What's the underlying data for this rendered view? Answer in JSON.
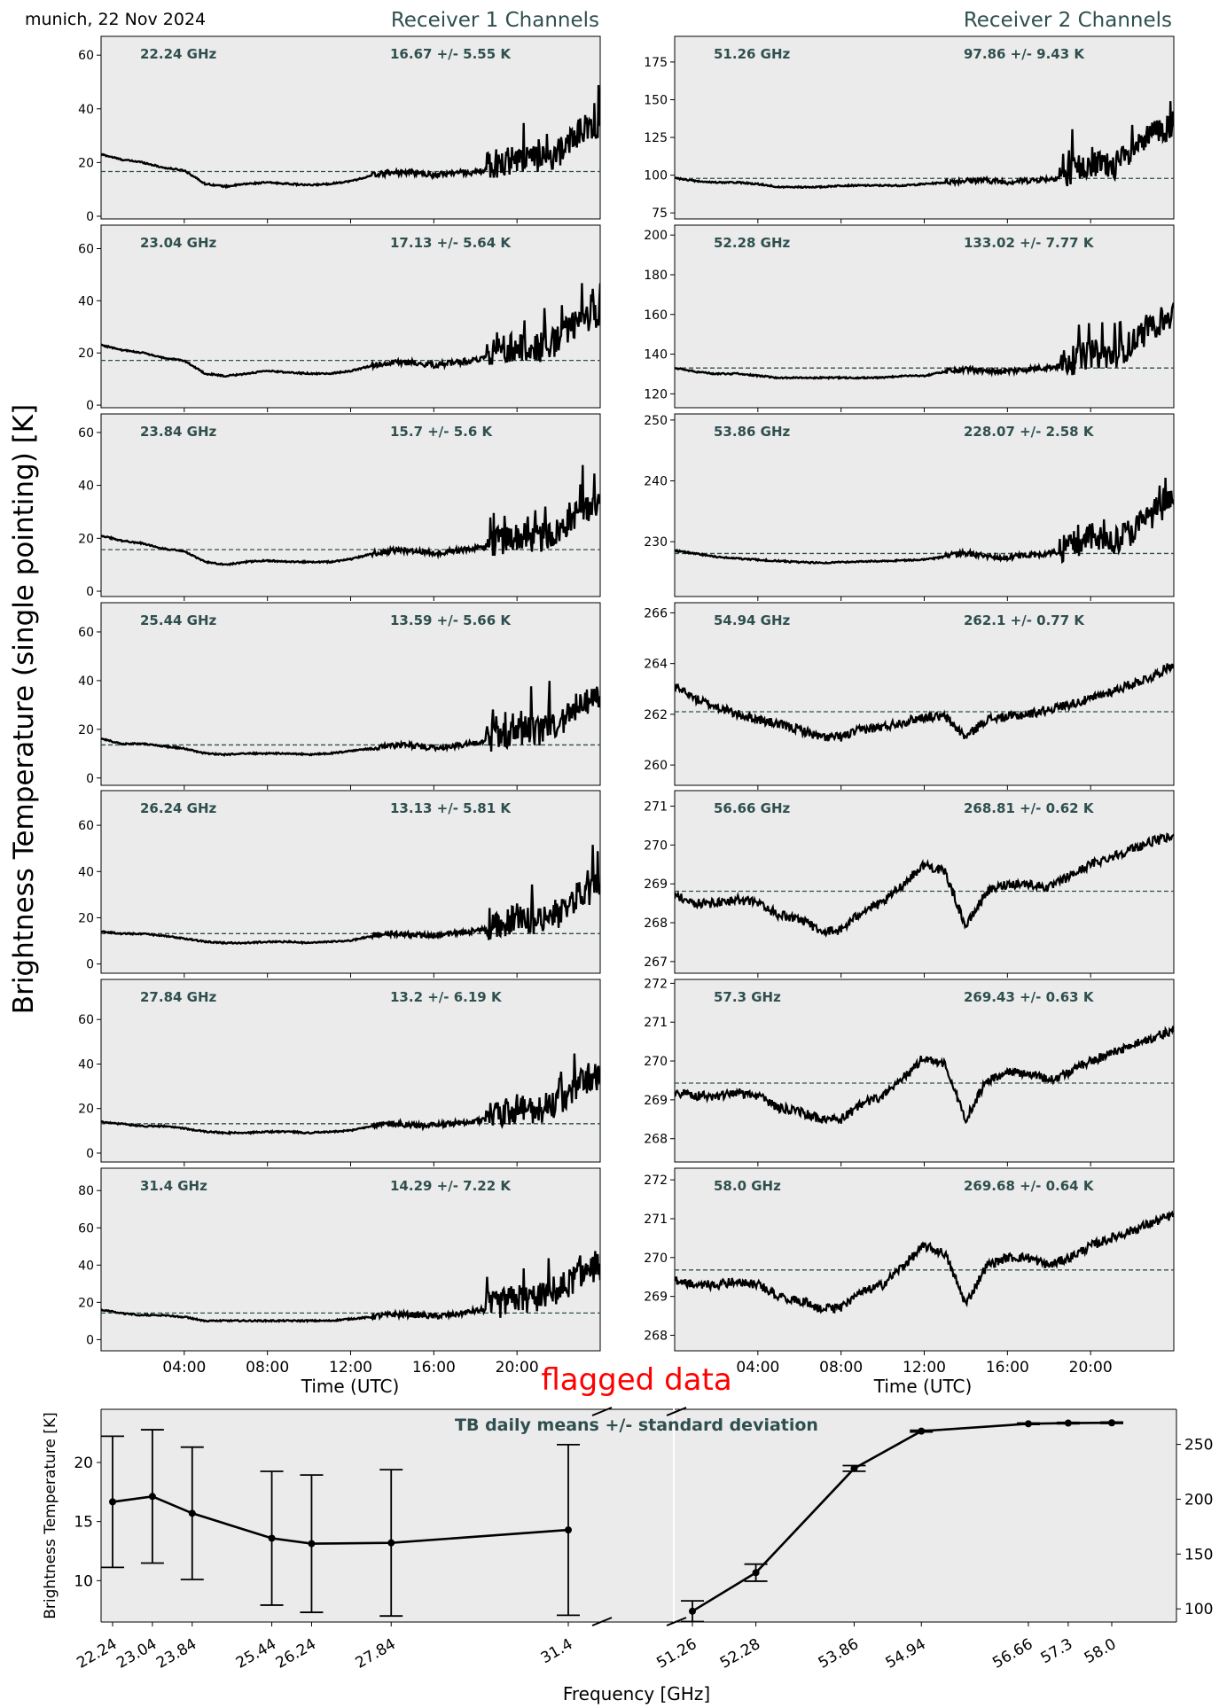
{
  "header": {
    "location_date": "munich, 22 Nov 2024",
    "receiver1_title": "Receiver 1 Channels",
    "receiver2_title": "Receiver 2 Channels",
    "y_label": "Brightness Temperature (single pointing) [K]",
    "x_label_left": "Time (UTC)",
    "x_label_right": "Time (UTC)",
    "flagged_label": "flagged data"
  },
  "colors": {
    "panel_bg": "#ebebeb",
    "trace": "#000000",
    "mean_line": "#2f4f4f",
    "label": "#2f4f4f",
    "flagged": "#ff0000"
  },
  "time_ticks": [
    "04:00",
    "08:00",
    "12:00",
    "16:00",
    "20:00"
  ],
  "chart_data": [
    {
      "type": "line",
      "receiver": 1,
      "freq_label": "22.24 GHz",
      "stats_label": "16.67 +/- 5.55 K",
      "mean": 16.67,
      "std": 5.55,
      "ylim": [
        -1,
        67
      ],
      "yticks": [
        0,
        20,
        40,
        60
      ],
      "x_unit": "hours UTC",
      "xlim": [
        0,
        24
      ],
      "x": [
        0,
        1,
        2,
        3,
        4,
        5,
        6,
        7,
        8,
        9,
        10,
        11,
        12,
        13,
        14,
        15,
        16,
        17,
        18,
        19,
        20,
        21,
        22,
        23,
        24
      ],
      "y": [
        23,
        21,
        20,
        18,
        17,
        12,
        11,
        12,
        12.5,
        12,
        11.5,
        12,
        13,
        15,
        16,
        16,
        15,
        16,
        16,
        18,
        20,
        19,
        22,
        30,
        33
      ]
    },
    {
      "type": "line",
      "receiver": 1,
      "freq_label": "23.04 GHz",
      "stats_label": "17.13 +/- 5.64 K",
      "mean": 17.13,
      "std": 5.64,
      "ylim": [
        -1,
        69
      ],
      "yticks": [
        0,
        20,
        40,
        60
      ],
      "x_unit": "hours UTC",
      "xlim": [
        0,
        24
      ],
      "x": [
        0,
        1,
        2,
        3,
        4,
        5,
        6,
        7,
        8,
        9,
        10,
        11,
        12,
        13,
        14,
        15,
        16,
        17,
        18,
        19,
        20,
        21,
        22,
        23,
        24
      ],
      "y": [
        23,
        21,
        20,
        18,
        17,
        12,
        11,
        12,
        13,
        12.5,
        12,
        12,
        13,
        15,
        16,
        16,
        15,
        16,
        17,
        18,
        21,
        20,
        23,
        31,
        34
      ]
    },
    {
      "type": "line",
      "receiver": 1,
      "freq_label": "23.84 GHz",
      "stats_label": "15.7 +/- 5.6 K",
      "mean": 15.7,
      "std": 5.6,
      "ylim": [
        -2,
        67
      ],
      "yticks": [
        0,
        20,
        40,
        60
      ],
      "x_unit": "hours UTC",
      "xlim": [
        0,
        24
      ],
      "x": [
        0,
        1,
        2,
        3,
        4,
        5,
        6,
        7,
        8,
        9,
        10,
        11,
        12,
        13,
        14,
        15,
        16,
        17,
        18,
        19,
        20,
        21,
        22,
        23,
        24
      ],
      "y": [
        21,
        19,
        18,
        16,
        15,
        11,
        10,
        11,
        11.5,
        11,
        11,
        11,
        12,
        14,
        15,
        15,
        14,
        15,
        16,
        17,
        19,
        18,
        21,
        29,
        32
      ]
    },
    {
      "type": "line",
      "receiver": 1,
      "freq_label": "25.44 GHz",
      "stats_label": "13.59 +/- 5.66 K",
      "mean": 13.59,
      "std": 5.66,
      "ylim": [
        -3,
        72
      ],
      "yticks": [
        0,
        20,
        40,
        60
      ],
      "x_unit": "hours UTC",
      "xlim": [
        0,
        24
      ],
      "x": [
        0,
        1,
        2,
        3,
        4,
        5,
        6,
        7,
        8,
        9,
        10,
        11,
        12,
        13,
        14,
        15,
        16,
        17,
        18,
        19,
        20,
        21,
        22,
        23,
        24
      ],
      "y": [
        16,
        14,
        14,
        13,
        12,
        10,
        9.5,
        10,
        10,
        10,
        9.5,
        10,
        11,
        12,
        13,
        13,
        12,
        13,
        14,
        15,
        18,
        17,
        20,
        28,
        31
      ]
    },
    {
      "type": "line",
      "receiver": 1,
      "freq_label": "26.24 GHz",
      "stats_label": "13.13 +/- 5.81 K",
      "mean": 13.13,
      "std": 5.81,
      "ylim": [
        -4,
        75
      ],
      "yticks": [
        0,
        20,
        40,
        60
      ],
      "x_unit": "hours UTC",
      "xlim": [
        0,
        24
      ],
      "x": [
        0,
        1,
        2,
        3,
        4,
        5,
        6,
        7,
        8,
        9,
        10,
        11,
        12,
        13,
        14,
        15,
        16,
        17,
        18,
        19,
        20,
        21,
        22,
        23,
        24
      ],
      "y": [
        14,
        13,
        13,
        12,
        11,
        9.5,
        9,
        9,
        9.5,
        9.5,
        9,
        9.5,
        10,
        12,
        13,
        12,
        12,
        13,
        14,
        15,
        18,
        17,
        20,
        28,
        32
      ]
    },
    {
      "type": "line",
      "receiver": 1,
      "freq_label": "27.84 GHz",
      "stats_label": "13.2 +/- 6.19 K",
      "mean": 13.2,
      "std": 6.19,
      "ylim": [
        -4,
        78
      ],
      "yticks": [
        0,
        20,
        40,
        60
      ],
      "x_unit": "hours UTC",
      "xlim": [
        0,
        24
      ],
      "x": [
        0,
        1,
        2,
        3,
        4,
        5,
        6,
        7,
        8,
        9,
        10,
        11,
        12,
        13,
        14,
        15,
        16,
        17,
        18,
        19,
        20,
        21,
        22,
        23,
        24
      ],
      "y": [
        14,
        13,
        12,
        12,
        11,
        9.5,
        9,
        9,
        9.5,
        9.5,
        9,
        9.5,
        10,
        12,
        13,
        12,
        12,
        13,
        14,
        15,
        18,
        17,
        21,
        30,
        33
      ]
    },
    {
      "type": "line",
      "receiver": 1,
      "freq_label": "31.4 GHz",
      "stats_label": "14.29 +/- 7.22 K",
      "mean": 14.29,
      "std": 7.22,
      "ylim": [
        -6,
        92
      ],
      "yticks": [
        0,
        20,
        40,
        60,
        80
      ],
      "x_unit": "hours UTC",
      "xlim": [
        0,
        24
      ],
      "x": [
        0,
        1,
        2,
        3,
        4,
        5,
        6,
        7,
        8,
        9,
        10,
        11,
        12,
        13,
        14,
        15,
        16,
        17,
        18,
        19,
        20,
        21,
        22,
        23,
        24
      ],
      "y": [
        16,
        14,
        13,
        13,
        12,
        10,
        10,
        10,
        10,
        10,
        10,
        10,
        11,
        12,
        13,
        13,
        12,
        13,
        15,
        16,
        20,
        19,
        23,
        33,
        37
      ]
    },
    {
      "type": "line",
      "receiver": 2,
      "freq_label": "51.26 GHz",
      "stats_label": "97.86 +/- 9.43 K",
      "mean": 97.86,
      "std": 9.43,
      "ylim": [
        71,
        192
      ],
      "yticks": [
        75,
        100,
        125,
        150,
        175
      ],
      "x_unit": "hours UTC",
      "xlim": [
        0,
        24
      ],
      "x": [
        0,
        1,
        2,
        3,
        4,
        5,
        6,
        7,
        8,
        9,
        10,
        11,
        12,
        13,
        14,
        15,
        16,
        17,
        18,
        19,
        20,
        21,
        22,
        23,
        24
      ],
      "y": [
        98,
        96,
        95,
        95,
        94,
        92,
        92,
        92,
        93,
        93,
        93,
        93,
        94,
        95,
        96,
        96,
        95,
        96,
        97,
        99,
        105,
        103,
        110,
        125,
        130
      ]
    },
    {
      "type": "line",
      "receiver": 2,
      "freq_label": "52.28 GHz",
      "stats_label": "133.02 +/- 7.77 K",
      "mean": 133.02,
      "std": 7.77,
      "ylim": [
        113,
        205
      ],
      "yticks": [
        120,
        140,
        160,
        180,
        200
      ],
      "x_unit": "hours UTC",
      "xlim": [
        0,
        24
      ],
      "x": [
        0,
        1,
        2,
        3,
        4,
        5,
        6,
        7,
        8,
        9,
        10,
        11,
        12,
        13,
        14,
        15,
        16,
        17,
        18,
        19,
        20,
        21,
        22,
        23,
        24
      ],
      "y": [
        133,
        131,
        130,
        130,
        129,
        128,
        128,
        128,
        128,
        128,
        128,
        129,
        129,
        131,
        132,
        131,
        131,
        132,
        133,
        134,
        138,
        137,
        143,
        153,
        157
      ]
    },
    {
      "type": "line",
      "receiver": 2,
      "freq_label": "53.86 GHz",
      "stats_label": "228.07 +/- 2.58 K",
      "mean": 228.07,
      "std": 2.58,
      "ylim": [
        221,
        251
      ],
      "yticks": [
        230,
        240,
        250
      ],
      "x_unit": "hours UTC",
      "xlim": [
        0,
        24
      ],
      "x": [
        0,
        1,
        2,
        3,
        4,
        5,
        6,
        7,
        8,
        9,
        10,
        11,
        12,
        13,
        14,
        15,
        16,
        17,
        18,
        19,
        20,
        21,
        22,
        23,
        24
      ],
      "y": [
        228.5,
        228,
        227.5,
        227.2,
        227,
        226.8,
        226.6,
        226.5,
        226.6,
        226.7,
        226.8,
        226.9,
        227,
        227.5,
        228,
        227.5,
        227.3,
        227.6,
        228,
        228.5,
        230,
        229.5,
        231,
        234,
        236
      ]
    },
    {
      "type": "line",
      "receiver": 2,
      "freq_label": "54.94 GHz",
      "stats_label": "262.1 +/- 0.77 K",
      "mean": 262.1,
      "std": 0.77,
      "ylim": [
        259.2,
        266.4
      ],
      "yticks": [
        260,
        262,
        264,
        266
      ],
      "x_unit": "hours UTC",
      "xlim": [
        0,
        24
      ],
      "x": [
        0,
        1,
        2,
        3,
        4,
        5,
        6,
        7,
        8,
        9,
        10,
        11,
        12,
        13,
        14,
        15,
        16,
        17,
        18,
        19,
        20,
        21,
        22,
        23,
        24
      ],
      "y": [
        263.1,
        262.6,
        262.3,
        262,
        261.8,
        261.6,
        261.4,
        261.1,
        261.1,
        261.4,
        261.5,
        261.7,
        261.9,
        261.9,
        261.1,
        261.8,
        261.9,
        262,
        262.2,
        262.4,
        262.6,
        262.9,
        263.2,
        263.5,
        264
      ]
    },
    {
      "type": "line",
      "receiver": 2,
      "freq_label": "56.66 GHz",
      "stats_label": "268.81 +/- 0.62 K",
      "mean": 268.81,
      "std": 0.62,
      "ylim": [
        266.7,
        271.4
      ],
      "yticks": [
        267,
        268,
        269,
        270,
        271
      ],
      "x_unit": "hours UTC",
      "xlim": [
        0,
        24
      ],
      "x": [
        0,
        1,
        2,
        3,
        4,
        5,
        6,
        7,
        8,
        9,
        10,
        11,
        12,
        13,
        14,
        15,
        16,
        17,
        18,
        19,
        20,
        21,
        22,
        23,
        24
      ],
      "y": [
        268.7,
        268.5,
        268.5,
        268.6,
        268.5,
        268.2,
        268.1,
        267.8,
        267.8,
        268.3,
        268.5,
        269,
        269.5,
        269.3,
        267.9,
        268.8,
        269,
        269,
        268.9,
        269.2,
        269.5,
        269.7,
        269.9,
        270.1,
        270.2
      ]
    },
    {
      "type": "line",
      "receiver": 2,
      "freq_label": "57.3 GHz",
      "stats_label": "269.43 +/- 0.63 K",
      "mean": 269.43,
      "std": 0.63,
      "ylim": [
        267.4,
        272.1
      ],
      "yticks": [
        268,
        269,
        270,
        271,
        272
      ],
      "x_unit": "hours UTC",
      "xlim": [
        0,
        24
      ],
      "x": [
        0,
        1,
        2,
        3,
        4,
        5,
        6,
        7,
        8,
        9,
        10,
        11,
        12,
        13,
        14,
        15,
        16,
        17,
        18,
        19,
        20,
        21,
        22,
        23,
        24
      ],
      "y": [
        269.2,
        269.1,
        269.1,
        269.2,
        269.1,
        268.8,
        268.7,
        268.5,
        268.5,
        268.9,
        269.1,
        269.6,
        270.1,
        269.9,
        268.5,
        269.5,
        269.7,
        269.7,
        269.5,
        269.7,
        270,
        270.2,
        270.4,
        270.6,
        270.8
      ]
    },
    {
      "type": "line",
      "receiver": 2,
      "freq_label": "58.0 GHz",
      "stats_label": "269.68 +/- 0.64 K",
      "mean": 269.68,
      "std": 0.64,
      "ylim": [
        267.6,
        272.3
      ],
      "yticks": [
        268,
        269,
        270,
        271,
        272
      ],
      "x_unit": "hours UTC",
      "xlim": [
        0,
        24
      ],
      "x": [
        0,
        1,
        2,
        3,
        4,
        5,
        6,
        7,
        8,
        9,
        10,
        11,
        12,
        13,
        14,
        15,
        16,
        17,
        18,
        19,
        20,
        21,
        22,
        23,
        24
      ],
      "y": [
        269.4,
        269.3,
        269.3,
        269.4,
        269.3,
        269,
        268.9,
        268.7,
        268.7,
        269.1,
        269.3,
        269.8,
        270.3,
        270.1,
        268.8,
        269.8,
        270,
        270,
        269.8,
        270,
        270.3,
        270.5,
        270.7,
        270.9,
        271.1
      ]
    },
    {
      "type": "line",
      "title": "TB daily means +/- standard deviation",
      "xlabel": "Frequency [GHz]",
      "ylabel": "Brightness Temperature [K]",
      "left_axis": {
        "ylim": [
          6.5,
          24.5
        ],
        "yticks": [
          10,
          15,
          20
        ],
        "x": [
          22.24,
          23.04,
          23.84,
          25.44,
          26.24,
          27.84,
          31.4
        ],
        "tick_labels": [
          "22.24",
          "23.04",
          "23.84",
          "25.44",
          "26.24",
          "27.84",
          "31.4"
        ],
        "mean": [
          16.67,
          17.13,
          15.7,
          13.59,
          13.13,
          13.2,
          14.29
        ],
        "std": [
          5.55,
          5.64,
          5.6,
          5.66,
          5.81,
          6.19,
          7.22
        ]
      },
      "right_axis": {
        "ylim": [
          88,
          282
        ],
        "yticks": [
          100,
          150,
          200,
          250
        ],
        "x": [
          51.26,
          52.28,
          53.86,
          54.94,
          56.66,
          57.3,
          58.0
        ],
        "tick_labels": [
          "51.26",
          "52.28",
          "53.86",
          "54.94",
          "56.66",
          "57.3",
          "58.0"
        ],
        "mean": [
          97.86,
          133.02,
          228.07,
          262.1,
          268.81,
          269.43,
          269.68
        ],
        "std": [
          9.43,
          7.77,
          2.58,
          0.77,
          0.62,
          0.63,
          0.64
        ]
      }
    }
  ]
}
